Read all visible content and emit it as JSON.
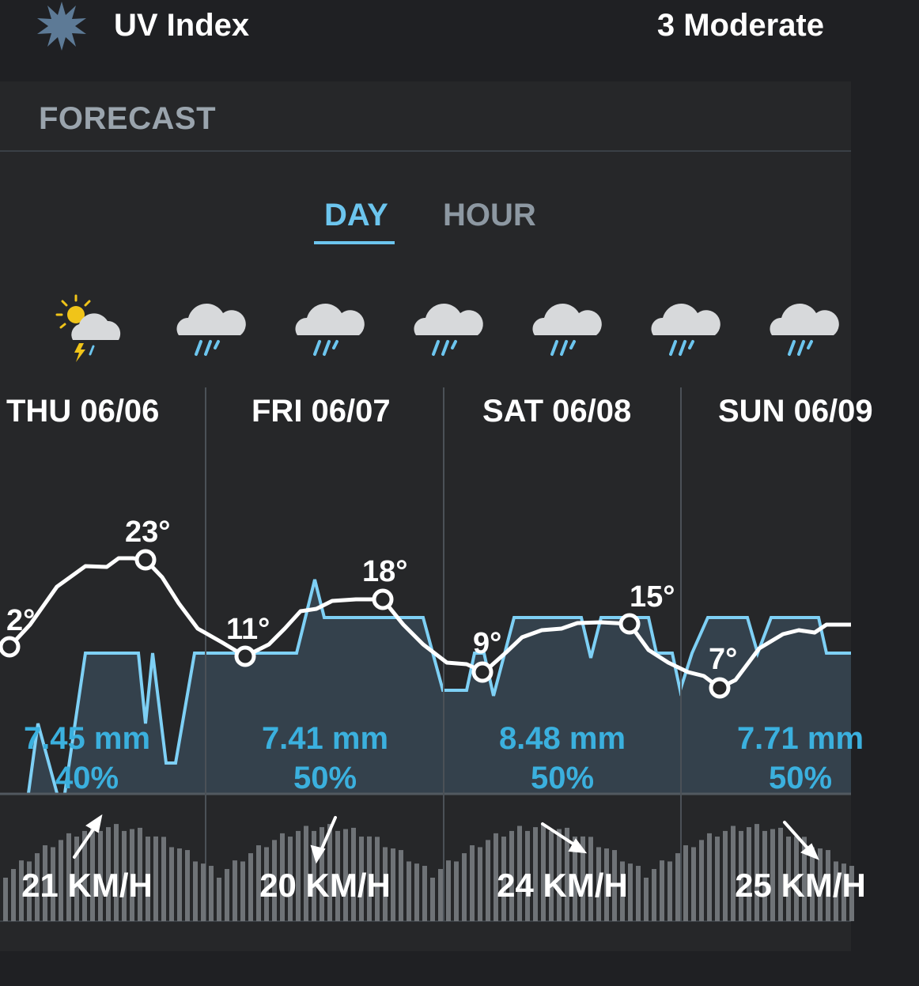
{
  "uv": {
    "label": "UV Index",
    "value": "3 Moderate",
    "icon": "sun-icon"
  },
  "forecast": {
    "title": "FORECAST",
    "tabs": [
      {
        "label": "DAY",
        "active": true
      },
      {
        "label": "HOUR",
        "active": false
      }
    ],
    "icons": [
      "partly-cloudy-thunder-icon",
      "rain-cloud-icon",
      "rain-cloud-icon",
      "rain-cloud-icon",
      "rain-cloud-icon",
      "rain-cloud-icon",
      "rain-cloud-icon"
    ],
    "days": [
      {
        "date": "THU 06/06",
        "high": "23°",
        "low": "2°",
        "precip_amount": "7.45 mm",
        "precip_chance": "40%",
        "wind": "21 KM/H"
      },
      {
        "date": "FRI 06/07",
        "high": "18°",
        "low": "11°",
        "precip_amount": "7.41 mm",
        "precip_chance": "50%",
        "wind": "20 KM/H"
      },
      {
        "date": "SAT 06/08",
        "high": "15°",
        "low": "9°",
        "precip_amount": "8.48 mm",
        "precip_chance": "50%",
        "wind": "24 KM/H"
      },
      {
        "date": "SUN 06/09",
        "high": "",
        "low": "7°",
        "precip_amount": "7.71 mm",
        "precip_chance": "50%",
        "wind": "25 KM/H"
      }
    ],
    "colors": {
      "accent": "#6cc5ee",
      "precip_text": "#3bb0de",
      "precip_fill": "#34414c",
      "wind_bar": "#6f7377",
      "temp_line": "#ffffff"
    }
  }
}
